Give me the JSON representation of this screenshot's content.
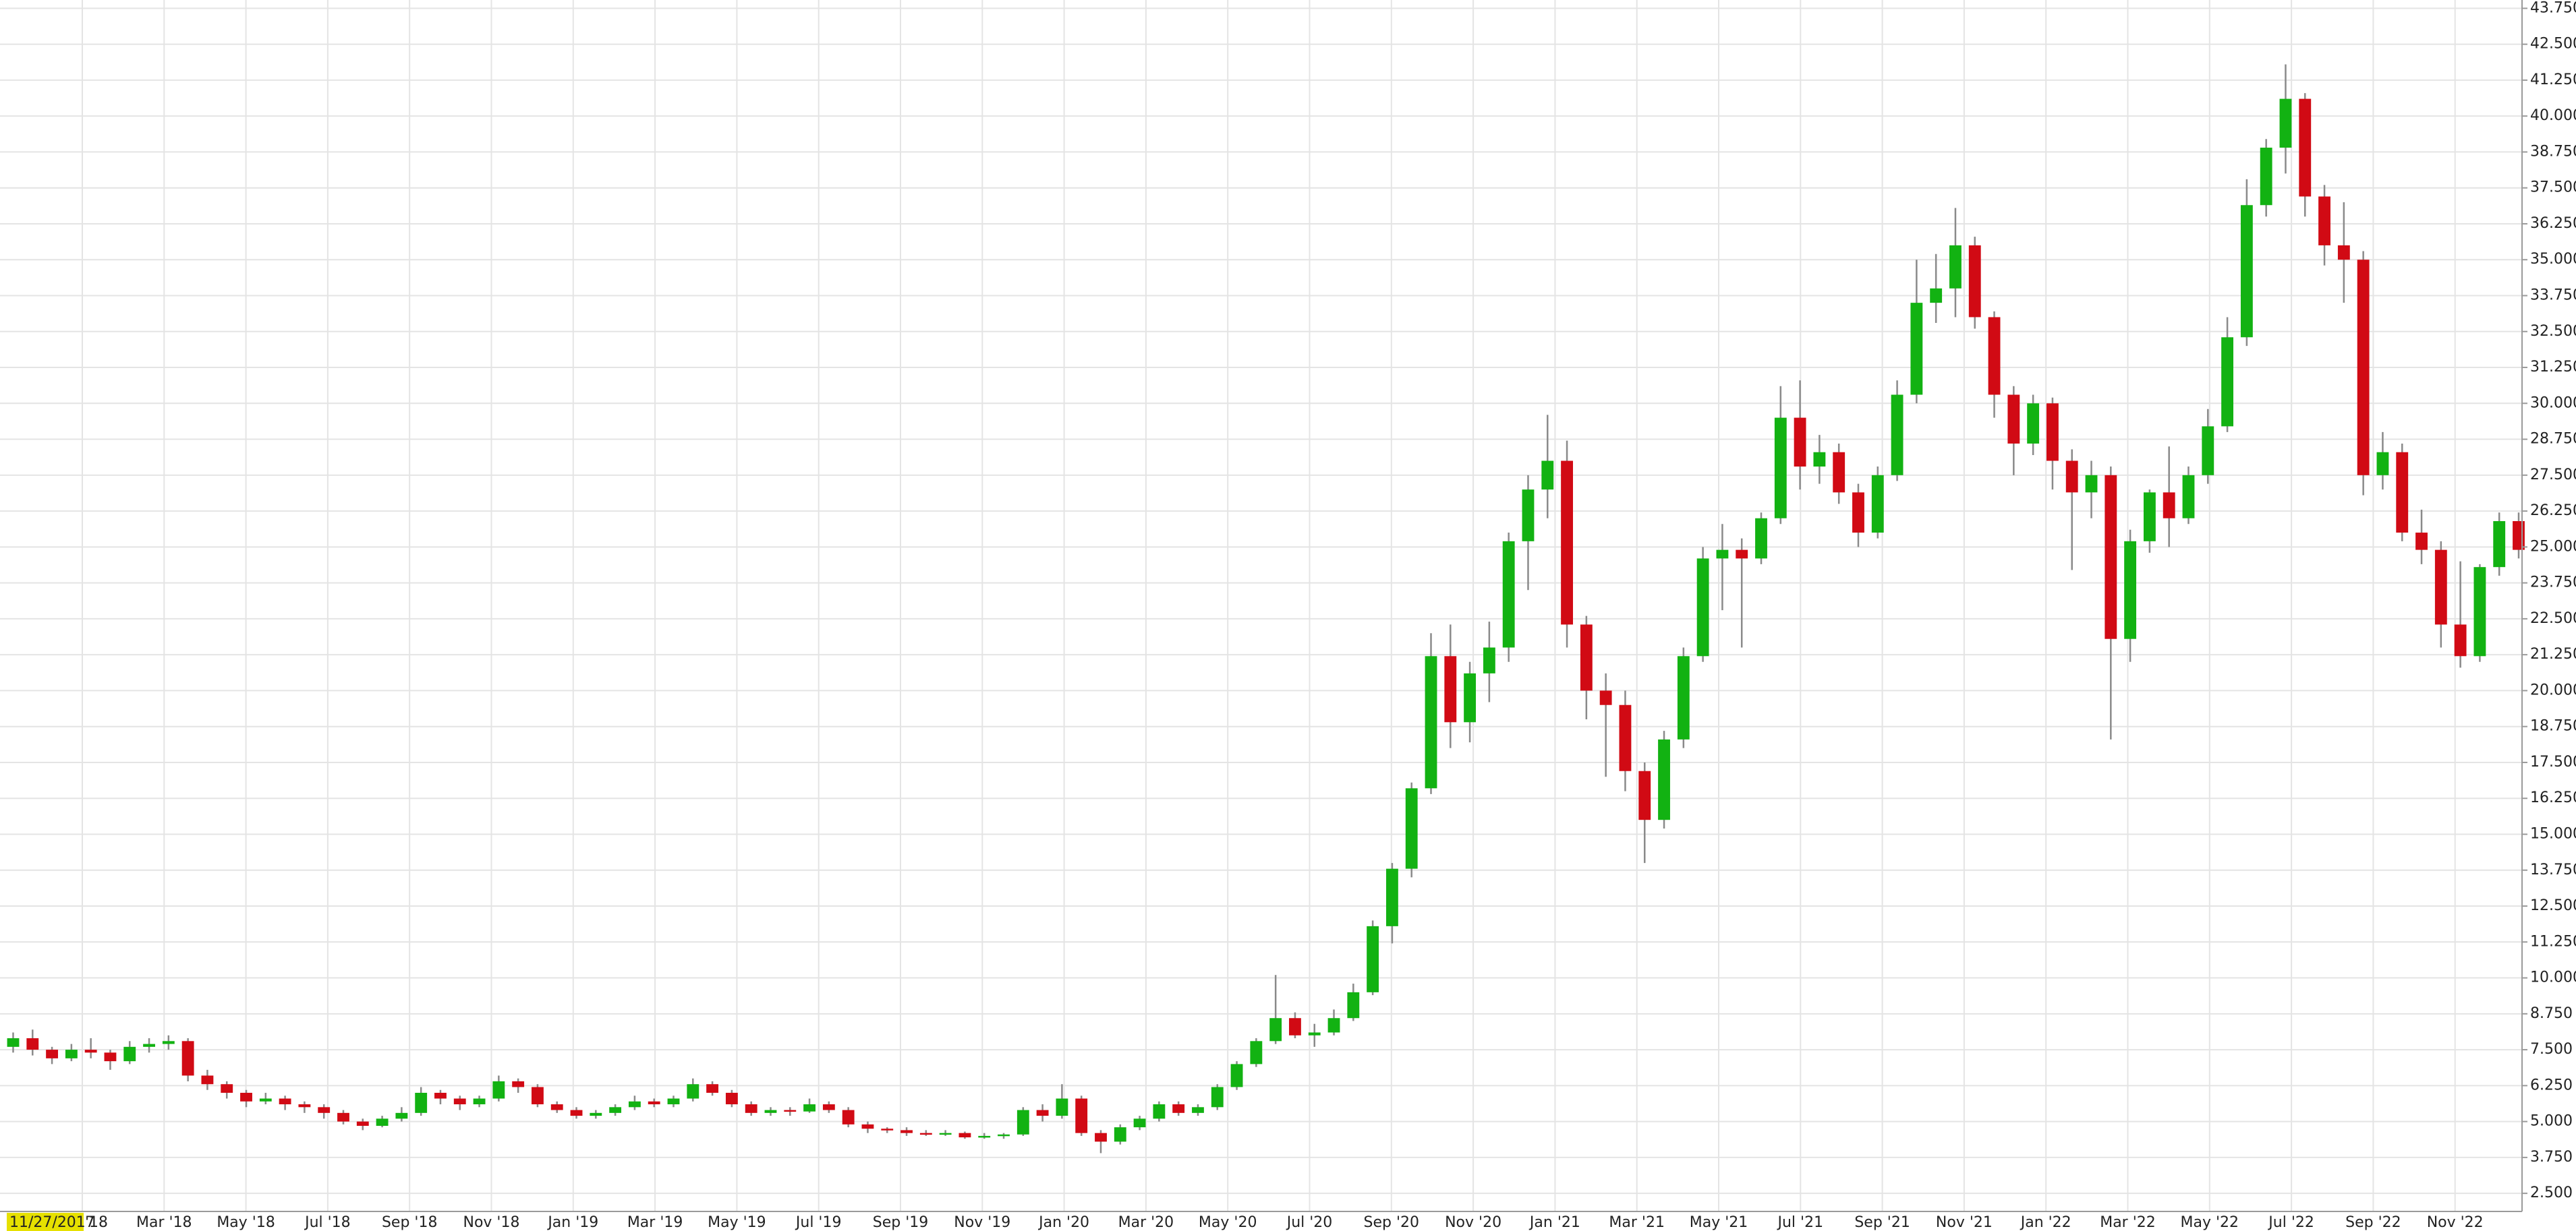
{
  "chart_data": {
    "type": "candlestick",
    "date_label": "11/27/2017",
    "x_labels": [
      "'18",
      "Mar '18",
      "May '18",
      "Jul '18",
      "Sep '18",
      "Nov '18",
      "Jan '19",
      "Mar '19",
      "May '19",
      "Jul '19",
      "Sep '19",
      "Nov '19",
      "Jan '20",
      "Mar '20",
      "May '20",
      "Jul '20",
      "Sep '20",
      "Nov '20",
      "Jan '21",
      "Mar '21",
      "May '21",
      "Jul '21",
      "Sep '21",
      "Nov '21",
      "Jan '22",
      "Mar '22",
      "May '22",
      "Jul '22",
      "Sep '22",
      "Nov '22"
    ],
    "open": [
      7.6,
      7.9,
      7.5,
      7.2,
      7.5,
      7.4,
      7.1,
      7.6,
      7.7,
      7.8,
      6.6,
      6.3,
      6.0,
      5.7,
      5.8,
      5.6,
      5.5,
      5.3,
      5.0,
      4.85,
      5.1,
      5.3,
      6.0,
      5.8,
      5.6,
      5.8,
      6.4,
      6.2,
      5.6,
      5.4,
      5.2,
      5.3,
      5.5,
      5.7,
      5.6,
      5.8,
      6.3,
      6.0,
      5.6,
      5.3,
      5.4,
      5.35,
      5.6,
      5.4,
      4.9,
      4.75,
      4.7,
      4.6,
      4.55,
      4.6,
      4.45,
      4.5,
      4.55,
      5.4,
      5.2,
      5.8,
      4.6,
      4.3,
      4.8,
      5.1,
      5.6,
      5.3,
      5.5,
      6.2,
      7.0,
      7.8,
      8.6,
      8.0,
      8.1,
      8.6,
      9.5,
      11.8,
      13.8,
      16.6,
      21.2,
      18.9,
      20.6,
      21.5,
      25.2,
      27.0,
      28.0,
      22.3,
      20.0,
      19.5,
      17.2,
      15.5,
      18.3,
      21.2,
      24.6,
      24.9,
      24.6,
      26.0,
      29.5,
      27.8,
      28.3,
      26.9,
      25.5,
      27.5,
      30.3,
      33.5,
      34.0,
      35.5,
      33.0,
      30.3,
      28.6,
      30.0,
      28.0,
      26.9,
      27.5,
      21.8,
      25.2,
      26.9,
      26.0,
      27.5,
      29.2,
      32.3,
      36.9,
      38.9,
      40.6,
      37.2,
      35.5,
      35.0,
      27.5,
      28.3,
      25.5,
      24.9,
      22.3,
      21.2,
      24.3,
      25.9
    ],
    "high": [
      8.1,
      8.2,
      7.6,
      7.7,
      7.9,
      7.5,
      7.8,
      7.9,
      8.0,
      7.9,
      6.8,
      6.4,
      6.1,
      6.0,
      5.9,
      5.7,
      5.6,
      5.4,
      5.1,
      5.2,
      5.5,
      6.2,
      6.1,
      5.9,
      5.9,
      6.6,
      6.5,
      6.3,
      5.7,
      5.5,
      5.4,
      5.6,
      5.9,
      5.8,
      5.9,
      6.5,
      6.4,
      6.1,
      5.7,
      5.5,
      5.5,
      5.8,
      5.7,
      5.5,
      5.0,
      4.8,
      4.8,
      4.7,
      4.7,
      4.65,
      4.6,
      4.6,
      5.5,
      5.6,
      6.3,
      5.9,
      4.7,
      4.9,
      5.2,
      5.7,
      5.7,
      5.6,
      6.3,
      7.1,
      7.9,
      10.1,
      8.8,
      8.4,
      8.9,
      9.8,
      12.0,
      14.0,
      16.8,
      22.0,
      22.3,
      21.0,
      22.4,
      25.5,
      27.5,
      29.6,
      28.7,
      22.6,
      20.6,
      20.0,
      17.5,
      18.6,
      21.5,
      25.0,
      25.8,
      25.3,
      26.2,
      30.6,
      30.8,
      28.9,
      28.6,
      27.2,
      27.8,
      30.8,
      35.0,
      35.2,
      36.8,
      35.8,
      33.2,
      30.6,
      30.3,
      30.2,
      28.4,
      28.0,
      27.8,
      25.6,
      27.0,
      28.5,
      27.8,
      29.8,
      33.0,
      37.8,
      39.2,
      41.8,
      40.8,
      37.6,
      37.0,
      35.3,
      29.0,
      28.6,
      26.3,
      25.2,
      24.5,
      24.4,
      26.2,
      26.2
    ],
    "low": [
      7.4,
      7.3,
      7.0,
      7.1,
      7.2,
      6.8,
      7.0,
      7.4,
      7.5,
      6.4,
      6.1,
      5.8,
      5.5,
      5.6,
      5.4,
      5.3,
      5.1,
      4.9,
      4.7,
      4.8,
      5.0,
      5.2,
      5.6,
      5.4,
      5.5,
      5.7,
      6.0,
      5.5,
      5.3,
      5.1,
      5.1,
      5.2,
      5.4,
      5.5,
      5.5,
      5.7,
      5.9,
      5.5,
      5.2,
      5.2,
      5.2,
      5.3,
      5.3,
      4.8,
      4.6,
      4.6,
      4.5,
      4.5,
      4.5,
      4.4,
      4.4,
      4.4,
      4.5,
      5.0,
      5.1,
      4.5,
      3.9,
      4.2,
      4.7,
      5.0,
      5.2,
      5.2,
      5.4,
      6.1,
      6.9,
      7.7,
      7.9,
      7.6,
      8.0,
      8.5,
      9.4,
      11.2,
      13.5,
      16.4,
      18.0,
      18.2,
      19.6,
      21.0,
      23.5,
      26.0,
      21.5,
      19.0,
      17.0,
      16.5,
      14.0,
      15.2,
      18.0,
      21.0,
      22.8,
      21.5,
      24.4,
      25.8,
      27.0,
      27.2,
      26.5,
      25.0,
      25.3,
      27.3,
      30.0,
      32.8,
      33.0,
      32.6,
      29.5,
      27.5,
      28.2,
      27.0,
      24.2,
      26.0,
      18.3,
      21.0,
      24.8,
      25.0,
      25.8,
      27.2,
      29.0,
      32.0,
      36.5,
      38.0,
      36.5,
      34.8,
      33.5,
      26.8,
      27.0,
      25.2,
      24.4,
      21.5,
      20.8,
      21.0,
      24.0,
      24.6
    ],
    "close": [
      7.9,
      7.5,
      7.2,
      7.5,
      7.4,
      7.1,
      7.6,
      7.7,
      7.8,
      6.6,
      6.3,
      6.0,
      5.7,
      5.8,
      5.6,
      5.5,
      5.3,
      5.0,
      4.85,
      5.1,
      5.3,
      6.0,
      5.8,
      5.6,
      5.8,
      6.4,
      6.2,
      5.6,
      5.4,
      5.2,
      5.3,
      5.5,
      5.7,
      5.6,
      5.8,
      6.3,
      6.0,
      5.6,
      5.3,
      5.4,
      5.35,
      5.6,
      5.4,
      4.9,
      4.75,
      4.7,
      4.6,
      4.55,
      4.6,
      4.45,
      4.5,
      4.55,
      5.4,
      5.2,
      5.8,
      4.6,
      4.3,
      4.8,
      5.1,
      5.6,
      5.3,
      5.5,
      6.2,
      7.0,
      7.8,
      8.6,
      8.0,
      8.1,
      8.6,
      9.5,
      11.8,
      13.8,
      16.6,
      21.2,
      18.9,
      20.6,
      21.5,
      25.2,
      27.0,
      28.0,
      22.3,
      20.0,
      19.5,
      17.2,
      15.5,
      18.3,
      21.2,
      24.6,
      24.9,
      24.6,
      26.0,
      29.5,
      27.8,
      28.3,
      26.9,
      25.5,
      27.5,
      30.3,
      33.5,
      34.0,
      35.5,
      33.0,
      30.3,
      28.6,
      30.0,
      28.0,
      26.9,
      27.5,
      21.8,
      25.2,
      26.9,
      26.0,
      27.5,
      29.2,
      32.3,
      36.9,
      38.9,
      40.6,
      37.2,
      35.5,
      35.0,
      27.5,
      28.3,
      25.5,
      24.9,
      22.3,
      21.2,
      24.3,
      25.9,
      24.9
    ],
    "up_color": "#12b212",
    "down_color": "#d10a14",
    "wick_color": "#8a8a8a",
    "ylim": [
      1.87,
      44.04
    ],
    "yticks": [
      {
        "value": 2.5,
        "label": "2.500"
      },
      {
        "value": 3.75,
        "label": "3.750"
      },
      {
        "value": 5,
        "label": "5.000"
      },
      {
        "value": 6.25,
        "label": "6.250"
      },
      {
        "value": 7.5,
        "label": "7.500"
      },
      {
        "value": 8.75,
        "label": "8.750"
      },
      {
        "value": 10,
        "label": "10.000"
      },
      {
        "value": 11.25,
        "label": "11.250"
      },
      {
        "value": 12.5,
        "label": "12.500"
      },
      {
        "value": 13.75,
        "label": "13.750"
      },
      {
        "value": 15,
        "label": "15.000"
      },
      {
        "value": 16.25,
        "label": "16.250"
      },
      {
        "value": 17.5,
        "label": "17.500"
      },
      {
        "value": 18.75,
        "label": "18.750"
      },
      {
        "value": 20,
        "label": "20.000"
      },
      {
        "value": 21.25,
        "label": "21.250"
      },
      {
        "value": 22.5,
        "label": "22.500"
      },
      {
        "value": 23.75,
        "label": "23.750"
      },
      {
        "value": 25,
        "label": "25.000"
      },
      {
        "value": 26.25,
        "label": "26.250"
      },
      {
        "value": 27.5,
        "label": "27.500"
      },
      {
        "value": 28.75,
        "label": "28.750"
      },
      {
        "value": 30,
        "label": "30.000"
      },
      {
        "value": 31.25,
        "label": "31.250"
      },
      {
        "value": 32.5,
        "label": "32.500"
      },
      {
        "value": 33.75,
        "label": "33.750"
      },
      {
        "value": 35,
        "label": "35.000"
      },
      {
        "value": 36.25,
        "label": "36.250"
      },
      {
        "value": 37.5,
        "label": "37.500"
      },
      {
        "value": 38.75,
        "label": "38.750"
      },
      {
        "value": 40,
        "label": "40.000"
      },
      {
        "value": 41.25,
        "label": "41.250"
      },
      {
        "value": 42.5,
        "label": "42.500"
      },
      {
        "value": 43.75,
        "label": "43.750"
      }
    ],
    "grid": true
  }
}
